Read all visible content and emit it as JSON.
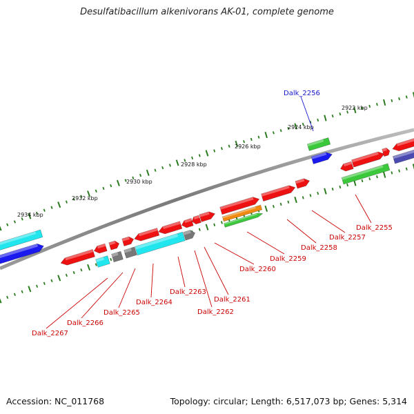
{
  "title": "Desulfatibacillum alkenivorans AK-01, complete genome",
  "footer": {
    "accession": "Accession: NC_011768",
    "topology": "Topology: circular; Length: 6,517,073 bp; Genes: 5,314"
  },
  "colors": {
    "backbone": "#8a8a8a",
    "tick": "#2a7a1e",
    "red": "#ee1111",
    "cyan": "#22e6ee",
    "blue": "#1a1aee",
    "green": "#3bc83b",
    "gray": "#777777",
    "orange": "#f08a10",
    "slate": "#4a4ab0",
    "label_red": "#cc0000",
    "label_blue": "#1515cc"
  },
  "kbp_labels": [
    "2934 kbp",
    "2932 kbp",
    "2930 kbp",
    "2928 kbp",
    "2926 kbp",
    "2924 kbp",
    "2922 kbp"
  ],
  "gene_labels": [
    "Dalk_2256",
    "Dalk_2255",
    "Dalk_2257",
    "Dalk_2258",
    "Dalk_2259",
    "Dalk_2260",
    "Dalk_2261",
    "Dalk_2262",
    "Dalk_2263",
    "Dalk_2264",
    "Dalk_2265",
    "Dalk_2266",
    "Dalk_2267"
  ]
}
